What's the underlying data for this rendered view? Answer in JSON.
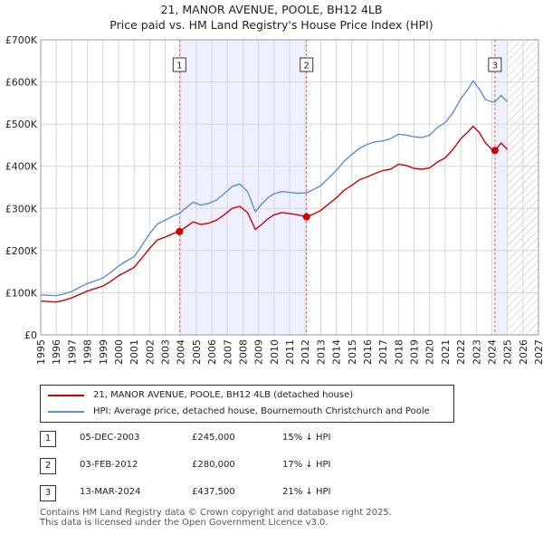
{
  "title_line1": "21, MANOR AVENUE, POOLE, BH12 4LB",
  "title_line2": "Price paid vs. HM Land Registry's House Price Index (HPI)",
  "legend": {
    "property_label": "21, MANOR AVENUE, POOLE, BH12 4LB (detached house)",
    "hpi_label": "HPI: Average price, detached house, Bournemouth Christchurch and Poole"
  },
  "colors": {
    "property": "#cc0000",
    "hpi": "#5b8fd6",
    "shade": "#eef0ff",
    "grid": "#d6d6d6",
    "marker_line": "#e06060"
  },
  "transactions": [
    {
      "num": "1",
      "date": "05-DEC-2003",
      "price": "£245,000",
      "diff": "15% ↓ HPI"
    },
    {
      "num": "2",
      "date": "03-FEB-2012",
      "price": "£280,000",
      "diff": "17% ↓ HPI"
    },
    {
      "num": "3",
      "date": "13-MAR-2024",
      "price": "£437,500",
      "diff": "21% ↓ HPI"
    }
  ],
  "footer_line1": "Contains HM Land Registry data © Crown copyright and database right 2025.",
  "footer_line2": "This data is licensed under the Open Government Licence v3.0.",
  "chart_data": {
    "type": "line",
    "xlim": [
      1995,
      2027
    ],
    "ylim": [
      0,
      700000
    ],
    "x_ticks": [
      1995,
      1996,
      1997,
      1998,
      1999,
      2000,
      2001,
      2002,
      2003,
      2004,
      2005,
      2006,
      2007,
      2008,
      2009,
      2010,
      2011,
      2012,
      2013,
      2014,
      2015,
      2016,
      2017,
      2018,
      2019,
      2020,
      2021,
      2022,
      2023,
      2024,
      2025,
      2026,
      2027
    ],
    "y_ticks": [
      0,
      100000,
      200000,
      300000,
      400000,
      500000,
      600000,
      700000
    ],
    "y_tick_labels": [
      "£0",
      "£100K",
      "£200K",
      "£300K",
      "£400K",
      "£500K",
      "£600K",
      "£700K"
    ],
    "shaded_ranges": [
      [
        2003.92,
        2012.09
      ],
      [
        2024.2,
        2025.0
      ]
    ],
    "hatched_range": [
      2025.0,
      2027
    ],
    "series": [
      {
        "name": "21, MANOR AVENUE, POOLE, BH12 4LB (detached house)",
        "color": "#cc0000",
        "x": [
          1995,
          1996,
          1996.5,
          1997,
          1997.5,
          1998,
          1998.5,
          1999,
          1999.5,
          2000,
          2000.5,
          2001,
          2001.5,
          2002,
          2002.5,
          2003,
          2003.5,
          2003.92,
          2004.3,
          2004.8,
          2005.3,
          2005.8,
          2006.3,
          2006.8,
          2007.3,
          2007.8,
          2008.3,
          2008.8,
          2009.2,
          2009.6,
          2010,
          2010.5,
          2011,
          2011.5,
          2012.09,
          2012.5,
          2013,
          2013.5,
          2014,
          2014.5,
          2015,
          2015.5,
          2016,
          2016.5,
          2017,
          2017.5,
          2018,
          2018.5,
          2019,
          2019.5,
          2020,
          2020.5,
          2021,
          2021.5,
          2022,
          2022.5,
          2022.8,
          2023.2,
          2023.6,
          2024.0,
          2024.2,
          2024.6,
          2025
        ],
        "y": [
          80000,
          78000,
          82000,
          88000,
          96000,
          104000,
          110000,
          116000,
          127000,
          140000,
          150000,
          160000,
          182000,
          205000,
          225000,
          232000,
          240000,
          245000,
          255000,
          268000,
          262000,
          265000,
          272000,
          285000,
          300000,
          305000,
          290000,
          250000,
          262000,
          275000,
          285000,
          290000,
          288000,
          285000,
          280000,
          286000,
          295000,
          310000,
          325000,
          343000,
          355000,
          368000,
          375000,
          383000,
          390000,
          393000,
          405000,
          402000,
          395000,
          393000,
          396000,
          410000,
          420000,
          440000,
          465000,
          483000,
          495000,
          480000,
          455000,
          440000,
          437500,
          455000,
          440000
        ]
      },
      {
        "name": "HPI: Average price, detached house, Bournemouth Christchurch and Poole",
        "color": "#5b8fd6",
        "x": [
          1995,
          1996,
          1996.5,
          1997,
          1997.5,
          1998,
          1998.5,
          1999,
          1999.5,
          2000,
          2000.5,
          2001,
          2001.5,
          2002,
          2002.5,
          2003,
          2003.5,
          2003.92,
          2004.3,
          2004.8,
          2005.3,
          2005.8,
          2006.3,
          2006.8,
          2007.3,
          2007.8,
          2008.3,
          2008.8,
          2009.2,
          2009.6,
          2010,
          2010.5,
          2011,
          2011.5,
          2012.09,
          2012.5,
          2013,
          2013.5,
          2014,
          2014.5,
          2015,
          2015.5,
          2016,
          2016.5,
          2017,
          2017.5,
          2018,
          2018.5,
          2019,
          2019.5,
          2020,
          2020.5,
          2021,
          2021.5,
          2022,
          2022.5,
          2022.8,
          2023.2,
          2023.6,
          2024.0,
          2024.2,
          2024.6,
          2025
        ],
        "y": [
          95000,
          93000,
          97000,
          103000,
          113000,
          122000,
          128000,
          135000,
          148000,
          163000,
          175000,
          185000,
          212000,
          240000,
          263000,
          272000,
          282000,
          288000,
          300000,
          315000,
          308000,
          312000,
          320000,
          335000,
          352000,
          358000,
          340000,
          292000,
          310000,
          325000,
          335000,
          340000,
          338000,
          336000,
          337000,
          344000,
          354000,
          372000,
          390000,
          412000,
          428000,
          443000,
          452000,
          458000,
          460000,
          466000,
          476000,
          474000,
          470000,
          468000,
          474000,
          492000,
          504000,
          527000,
          560000,
          585000,
          603000,
          583000,
          558000,
          553000,
          553000,
          568000,
          553000
        ]
      }
    ],
    "markers": [
      {
        "label": "1",
        "x": 2003.92,
        "y": 245000
      },
      {
        "label": "2",
        "x": 2012.09,
        "y": 280000
      },
      {
        "label": "3",
        "x": 2024.2,
        "y": 437500
      }
    ]
  }
}
